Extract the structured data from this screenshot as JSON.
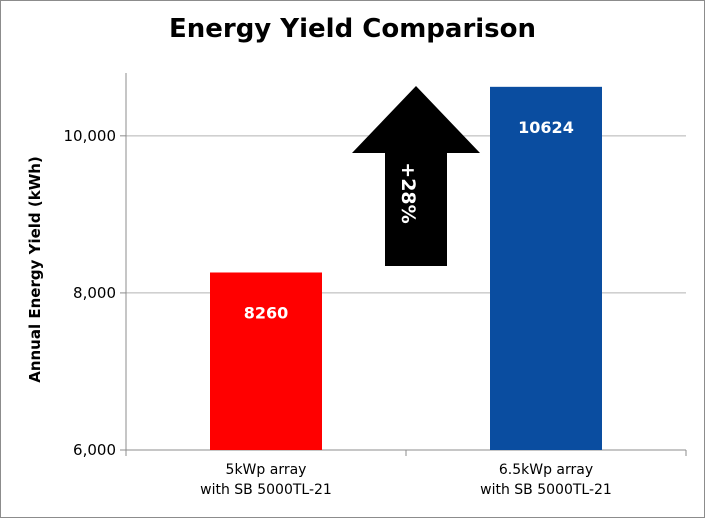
{
  "chart_data": {
    "type": "bar",
    "title": "Energy Yield Comparison",
    "xlabel": "",
    "ylabel": "Annual Energy Yield (kWh)",
    "ylim": [
      6000,
      10800
    ],
    "y_ticks": [
      6000,
      8000,
      10000
    ],
    "y_tick_labels": [
      "6,000",
      "8,000",
      "10,000"
    ],
    "grid": true,
    "categories": [
      [
        "5kWp array",
        "with SB 5000TL-21"
      ],
      [
        "6.5kWp array",
        "with SB 5000TL-21"
      ]
    ],
    "values": [
      8260,
      10624
    ],
    "data_labels": [
      "8260",
      "10624"
    ],
    "colors": [
      "#ff0000",
      "#0a4da0"
    ],
    "annotation": {
      "text": "+28%",
      "shape": "up-arrow",
      "color": "#000000"
    }
  }
}
